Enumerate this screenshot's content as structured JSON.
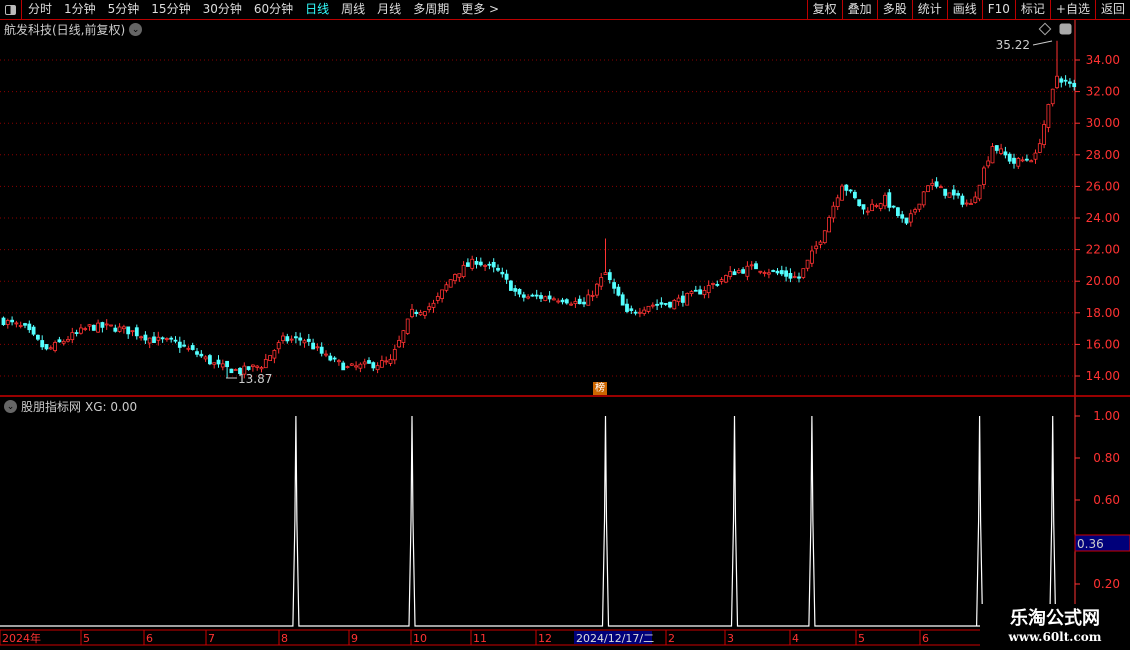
{
  "toolbar": {
    "periods": [
      "分时",
      "1分钟",
      "5分钟",
      "15分钟",
      "30分钟",
      "60分钟",
      "日线",
      "周线",
      "月线",
      "多周期",
      "更多 >"
    ],
    "active": "日线",
    "right_buttons": [
      "复权",
      "叠加",
      "多股",
      "统计",
      "画线",
      "F10",
      "标记",
      "+自选",
      "返回"
    ]
  },
  "chart": {
    "title": "航发科技(日线,前复权)",
    "max_label": "35.22",
    "min_label": "13.87",
    "badge": "榜",
    "price_ticks": [
      "34.00",
      "32.00",
      "30.00",
      "28.00",
      "26.00",
      "24.00",
      "22.00",
      "20.00",
      "18.00",
      "16.00",
      "14.00"
    ],
    "colors": {
      "up": "#ff3232",
      "down": "#54ffff",
      "grid": "#8b0000",
      "axis": "#ff3232"
    }
  },
  "indicator": {
    "label": "股朋指标网",
    "value_text": "XG: 0.00",
    "ticks": [
      "1.00",
      "0.80",
      "0.60",
      "0.20"
    ],
    "cursor_value": "0.36"
  },
  "date_axis": {
    "labels": [
      "2024年",
      "5",
      "6",
      "7",
      "8",
      "9",
      "10",
      "11",
      "12",
      "2",
      "3",
      "4",
      "5",
      "6"
    ],
    "cursor_date": "2024/12/17/二"
  },
  "watermark": {
    "name": "乐淘公式网",
    "url": "www.60lt.com"
  },
  "chart_data": {
    "type": "candlestick",
    "sample_every_bars": 5,
    "approx_closes": [
      17.5,
      17.0,
      15.6,
      16.4,
      17.1,
      17.1,
      16.8,
      16.3,
      16.1,
      15.4,
      14.6,
      14.3,
      14.7,
      16.3,
      16.3,
      15.2,
      14.5,
      14.7,
      14.9,
      18.0,
      18.5,
      20.5,
      21.3,
      20.6,
      19.0,
      19.0,
      18.9,
      18.5,
      20.5,
      17.9,
      18.5,
      18.6,
      19.1,
      19.8,
      20.6,
      20.9,
      20.5,
      20.2,
      22.7,
      26.2,
      24.5,
      25.2,
      23.5,
      26.2,
      25.5,
      24.8,
      28.6,
      27.5,
      27.9,
      33.0,
      32.0
    ],
    "high": 35.22,
    "low": 13.87,
    "ylim": [
      13,
      35.5
    ],
    "xg_signals_bar_index": [
      68,
      95,
      140,
      170,
      188,
      227,
      244
    ],
    "xg_ylim": [
      0,
      1.05
    ]
  }
}
